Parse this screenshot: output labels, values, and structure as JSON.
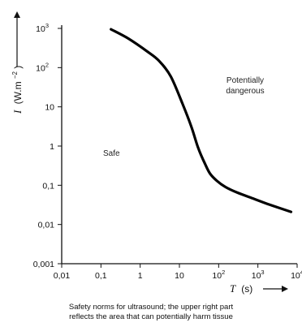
{
  "chart_data": {
    "type": "line",
    "ylabel_symbol": "I",
    "ylabel_units": "(W.m",
    "ylabel_exp": "−2",
    "ylabel_close": ")",
    "xlabel_symbol": "T",
    "xlabel_units": "(s)",
    "x_scale": "log",
    "y_scale": "log",
    "xlim": [
      0.01,
      10000
    ],
    "ylim": [
      0.001,
      1000
    ],
    "x_ticks": [
      {
        "value": 0.01,
        "base": "0,01",
        "exp": ""
      },
      {
        "value": 0.1,
        "base": "0,1",
        "exp": ""
      },
      {
        "value": 1,
        "base": "1",
        "exp": ""
      },
      {
        "value": 10,
        "base": "10",
        "exp": ""
      },
      {
        "value": 100,
        "base": "10",
        "exp": "2"
      },
      {
        "value": 1000,
        "base": "10",
        "exp": "3"
      },
      {
        "value": 10000,
        "base": "10",
        "exp": "4"
      }
    ],
    "y_ticks": [
      {
        "value": 0.001,
        "base": "0,001",
        "exp": ""
      },
      {
        "value": 0.01,
        "base": "0,01",
        "exp": ""
      },
      {
        "value": 0.1,
        "base": "0,1",
        "exp": ""
      },
      {
        "value": 1,
        "base": "1",
        "exp": ""
      },
      {
        "value": 10,
        "base": "10",
        "exp": ""
      },
      {
        "value": 100,
        "base": "10",
        "exp": "2"
      },
      {
        "value": 1000,
        "base": "10",
        "exp": "3"
      }
    ],
    "series": [
      {
        "x": [
          0.18,
          0.5,
          1.5,
          3,
          6,
          12,
          20,
          30,
          45,
          60,
          90,
          150,
          300,
          800,
          2000,
          7000
        ],
        "y": [
          950,
          550,
          260,
          150,
          60,
          12,
          3.2,
          0.9,
          0.35,
          0.2,
          0.13,
          0.09,
          0.065,
          0.045,
          0.032,
          0.021
        ]
      }
    ],
    "annotations": {
      "safe": "Safe",
      "dangerous_line1": "Potentially",
      "dangerous_line2": "dangerous"
    },
    "colors": {
      "curve": "#000000",
      "axis": "#111111"
    }
  },
  "caption": {
    "line1": "Safety norms for ultrasound; the upper right part",
    "line2": "reflects the area that can potentially harm tissue"
  }
}
